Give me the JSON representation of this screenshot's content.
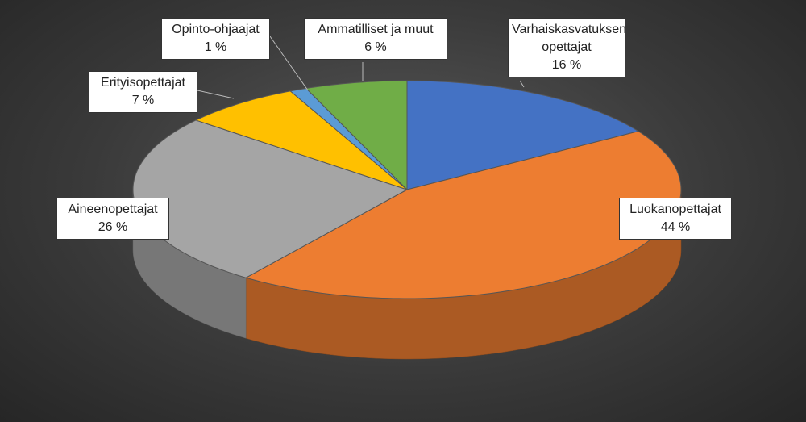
{
  "chart_data": {
    "type": "pie3d",
    "categories": [
      "Varhaiskasvatuksen opettajat",
      "Luokanopettajat",
      "Aineenopettajat",
      "Erityisopettajat",
      "Opinto-ohjaajat",
      "Ammatilliset ja muut"
    ],
    "values": [
      16,
      44,
      26,
      7,
      1,
      6
    ],
    "value_labels": [
      "16 %",
      "44 %",
      "26 %",
      "7 %",
      "1 %",
      "6 %"
    ],
    "colors": [
      "#4472c4",
      "#ed7d31",
      "#a5a5a5",
      "#ffc000",
      "#5b9bd5",
      "#70ad47"
    ]
  }
}
